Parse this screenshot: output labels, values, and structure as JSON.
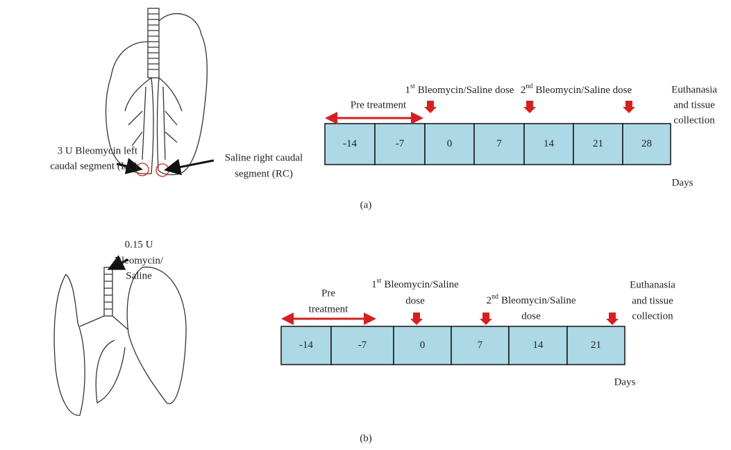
{
  "panels": [
    {
      "label": "(a)",
      "illustration_labels": [
        {
          "lines": [
            "3 U Bleomycin left",
            "caudal segment (LC)"
          ]
        },
        {
          "lines": [
            "Saline right caudal",
            "segment (RC)"
          ]
        }
      ],
      "timeline": {
        "cells": [
          "-14",
          "-7",
          "0",
          "7",
          "14",
          "21",
          "28"
        ],
        "unit": "Days",
        "pre_treatment": {
          "lines": [
            "Pre treatment"
          ]
        },
        "events": [
          {
            "number": "1",
            "suffix": "st",
            "lines": [
              "Bleomycin/Saline dose"
            ]
          },
          {
            "number": "2",
            "suffix": "nd",
            "lines": [
              "Bleomycin/Saline dose"
            ]
          },
          {
            "lines": [
              "Euthanasia",
              "and tissue",
              "collection"
            ]
          }
        ]
      }
    },
    {
      "label": "(b)",
      "illustration_labels": [
        {
          "lines": [
            "0.15 U",
            "Bleomycin/",
            "Saline"
          ]
        }
      ],
      "timeline": {
        "cells": [
          "-14",
          "-7",
          "0",
          "7",
          "14",
          "21"
        ],
        "unit": "Days",
        "pre_treatment": {
          "lines": [
            "Pre",
            "treatment"
          ]
        },
        "events": [
          {
            "number": "1",
            "suffix": "st",
            "lines": [
              "Bleomycin/Saline",
              "dose"
            ]
          },
          {
            "number": "2",
            "suffix": "nd",
            "lines": [
              "Bleomycin/Saline",
              "dose"
            ]
          },
          {
            "lines": [
              "Euthanasia",
              "and tissue",
              "collection"
            ]
          }
        ]
      }
    }
  ]
}
